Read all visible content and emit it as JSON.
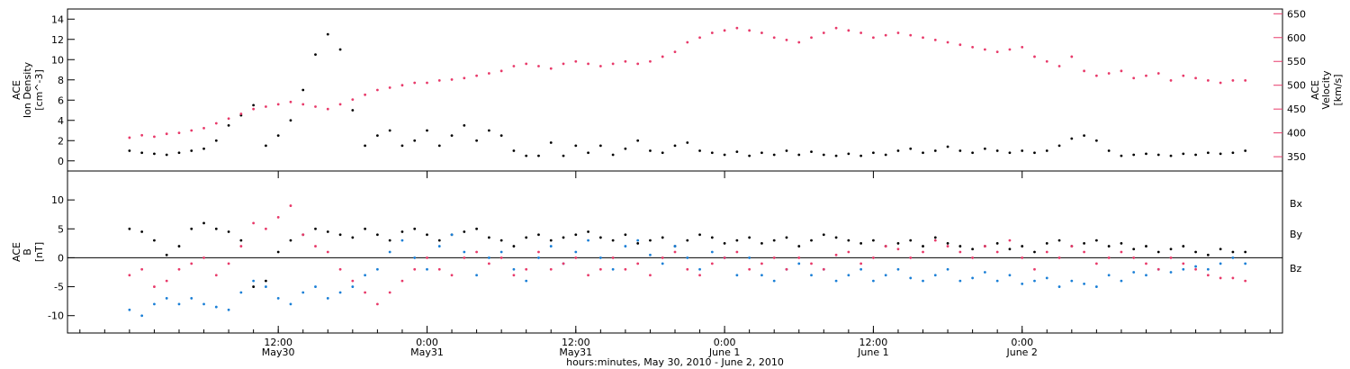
{
  "chart_data": [
    {
      "type": "scatter",
      "panel": "top",
      "ylabel_left": [
        "ACE",
        "Ion Density",
        "[cm^-3]"
      ],
      "ylabel_right": [
        "ACE",
        "Velocity",
        "[km/s]"
      ],
      "ylim_left": [
        -1,
        15
      ],
      "yticks_left": [
        0,
        2,
        4,
        6,
        8,
        10,
        12,
        14
      ],
      "ylim_right": [
        320,
        660
      ],
      "yticks_right": [
        350,
        400,
        450,
        500,
        550,
        600,
        650
      ],
      "series": [
        {
          "axis": "left",
          "color": "#000000",
          "x": [
            0,
            1,
            2,
            3,
            4,
            5,
            6,
            7,
            8,
            9,
            10,
            11,
            12,
            13,
            14,
            15,
            16,
            17,
            18,
            19,
            20,
            21,
            22,
            23,
            24,
            25,
            26,
            27,
            28,
            29,
            30,
            31,
            32,
            33,
            34,
            35,
            36,
            37,
            38,
            39,
            40,
            41,
            42,
            43,
            44,
            45,
            46,
            47,
            48,
            49,
            50,
            51,
            52,
            53,
            54,
            55,
            56,
            57,
            58,
            59,
            60,
            61,
            62,
            63,
            64,
            65,
            66,
            67,
            68,
            69,
            70,
            71,
            72,
            73,
            74,
            75,
            76,
            77,
            78,
            79,
            80,
            81,
            82,
            83,
            84,
            85,
            86,
            87,
            88,
            89,
            90
          ],
          "y": [
            1.0,
            0.8,
            0.7,
            0.6,
            0.8,
            1.0,
            1.2,
            2.0,
            3.5,
            4.5,
            5.5,
            1.5,
            2.5,
            4.0,
            7.0,
            10.5,
            12.5,
            11.0,
            5.0,
            1.5,
            2.5,
            3.0,
            1.5,
            2.0,
            3.0,
            1.5,
            2.5,
            3.5,
            2.0,
            3.0,
            2.5,
            1.0,
            0.5,
            0.5,
            1.8,
            0.5,
            1.5,
            0.8,
            1.5,
            0.6,
            1.2,
            2.0,
            1.0,
            0.8,
            1.5,
            1.8,
            1.0,
            0.8,
            0.6,
            0.9,
            0.5,
            0.8,
            0.6,
            1.0,
            0.6,
            0.9,
            0.6,
            0.5,
            0.7,
            0.5,
            0.8,
            0.6,
            1.0,
            1.2,
            0.8,
            1.0,
            1.4,
            1.0,
            0.8,
            1.2,
            1.0,
            0.8,
            1.0,
            0.8,
            1.0,
            1.5,
            2.2,
            2.5,
            2.0,
            1.0,
            0.5,
            0.6,
            0.7,
            0.6,
            0.5,
            0.7,
            0.6,
            0.8,
            0.7,
            0.8,
            1.0
          ]
        },
        {
          "axis": "right",
          "color": "#e83a6a",
          "x": [
            0,
            1,
            2,
            3,
            4,
            5,
            6,
            7,
            8,
            9,
            10,
            11,
            12,
            13,
            14,
            15,
            16,
            17,
            18,
            19,
            20,
            21,
            22,
            23,
            24,
            25,
            26,
            27,
            28,
            29,
            30,
            31,
            32,
            33,
            34,
            35,
            36,
            37,
            38,
            39,
            40,
            41,
            42,
            43,
            44,
            45,
            46,
            47,
            48,
            49,
            50,
            51,
            52,
            53,
            54,
            55,
            56,
            57,
            58,
            59,
            60,
            61,
            62,
            63,
            64,
            65,
            66,
            67,
            68,
            69,
            70,
            71,
            72,
            73,
            74,
            75,
            76,
            77,
            78,
            79,
            80,
            81,
            82,
            83,
            84,
            85,
            86,
            87,
            88,
            89,
            90
          ],
          "y": [
            390,
            395,
            392,
            398,
            400,
            405,
            410,
            420,
            430,
            440,
            450,
            455,
            460,
            465,
            460,
            455,
            450,
            460,
            470,
            480,
            490,
            495,
            500,
            505,
            505,
            510,
            512,
            515,
            520,
            525,
            530,
            540,
            545,
            540,
            535,
            545,
            550,
            545,
            540,
            545,
            550,
            545,
            550,
            560,
            570,
            590,
            600,
            610,
            615,
            620,
            615,
            610,
            600,
            595,
            590,
            600,
            610,
            620,
            615,
            610,
            600,
            605,
            610,
            605,
            600,
            595,
            590,
            585,
            580,
            575,
            570,
            575,
            580,
            560,
            550,
            540,
            560,
            530,
            520,
            525,
            530,
            515,
            520,
            525,
            510,
            520,
            515,
            510,
            505,
            510,
            510
          ]
        }
      ]
    },
    {
      "type": "scatter",
      "panel": "bottom",
      "ylabel_left": [
        "ACE",
        "B",
        "[nT]"
      ],
      "ylim": [
        -13,
        15
      ],
      "yticks": [
        -10,
        -5,
        0,
        5,
        10
      ],
      "zero_line": true,
      "legend_placement": "right",
      "series": [
        {
          "name": "B_x",
          "color": "#000000",
          "x": [
            0,
            1,
            2,
            3,
            4,
            5,
            6,
            7,
            8,
            9,
            10,
            11,
            12,
            13,
            14,
            15,
            16,
            17,
            18,
            19,
            20,
            21,
            22,
            23,
            24,
            25,
            26,
            27,
            28,
            29,
            30,
            31,
            32,
            33,
            34,
            35,
            36,
            37,
            38,
            39,
            40,
            41,
            42,
            43,
            44,
            45,
            46,
            47,
            48,
            49,
            50,
            51,
            52,
            53,
            54,
            55,
            56,
            57,
            58,
            59,
            60,
            61,
            62,
            63,
            64,
            65,
            66,
            67,
            68,
            69,
            70,
            71,
            72,
            73,
            74,
            75,
            76,
            77,
            78,
            79,
            80,
            81,
            82,
            83,
            84,
            85,
            86,
            87,
            88,
            89,
            90
          ],
          "y": [
            5.0,
            4.5,
            3.0,
            0.5,
            2.0,
            5.0,
            6.0,
            5.0,
            4.5,
            3.0,
            -5.0,
            -4.0,
            1.0,
            3.0,
            4.0,
            5.0,
            4.5,
            4.0,
            3.5,
            5.0,
            4.0,
            3.0,
            4.5,
            5.0,
            4.0,
            3.0,
            4.0,
            4.5,
            5.0,
            3.5,
            3.0,
            2.0,
            3.5,
            4.0,
            3.0,
            3.5,
            4.0,
            4.5,
            3.5,
            3.0,
            4.0,
            2.5,
            3.0,
            3.5,
            2.0,
            3.0,
            4.0,
            3.5,
            2.5,
            3.0,
            3.5,
            2.5,
            3.0,
            3.5,
            2.0,
            3.0,
            4.0,
            3.5,
            3.0,
            2.5,
            3.0,
            2.0,
            2.5,
            3.0,
            2.0,
            3.5,
            2.5,
            2.0,
            1.5,
            2.0,
            2.5,
            1.5,
            2.0,
            1.0,
            2.5,
            3.0,
            2.0,
            2.5,
            3.0,
            2.0,
            2.5,
            1.5,
            2.0,
            1.0,
            1.5,
            2.0,
            1.0,
            0.5,
            1.5,
            1.0,
            1.0
          ]
        },
        {
          "name": "B_y",
          "color": "#1a7fd6",
          "x": [
            0,
            1,
            2,
            3,
            4,
            5,
            6,
            7,
            8,
            9,
            10,
            11,
            12,
            13,
            14,
            15,
            16,
            17,
            18,
            19,
            20,
            21,
            22,
            23,
            24,
            25,
            26,
            27,
            28,
            29,
            30,
            31,
            32,
            33,
            34,
            35,
            36,
            37,
            38,
            39,
            40,
            41,
            42,
            43,
            44,
            45,
            46,
            47,
            48,
            49,
            50,
            51,
            52,
            53,
            54,
            55,
            56,
            57,
            58,
            59,
            60,
            61,
            62,
            63,
            64,
            65,
            66,
            67,
            68,
            69,
            70,
            71,
            72,
            73,
            74,
            75,
            76,
            77,
            78,
            79,
            80,
            81,
            82,
            83,
            84,
            85,
            86,
            87,
            88,
            89,
            90
          ],
          "y": [
            -9.0,
            -10.0,
            -8.0,
            -7.0,
            -8.0,
            -7.0,
            -8.0,
            -8.5,
            -9.0,
            -6.0,
            -4.0,
            -5.0,
            -7.0,
            -8.0,
            -6.0,
            -5.0,
            -7.0,
            -6.0,
            -5.0,
            -3.0,
            -2.0,
            1.0,
            3.0,
            0.0,
            -2.0,
            2.0,
            4.0,
            1.0,
            -3.0,
            0.0,
            1.0,
            -2.0,
            -4.0,
            0.0,
            2.0,
            -1.0,
            1.0,
            3.0,
            0.0,
            -2.0,
            2.0,
            3.0,
            0.5,
            -1.0,
            2.0,
            0.0,
            -2.0,
            1.0,
            0.0,
            -3.0,
            0.0,
            -3.0,
            -4.0,
            -2.0,
            -1.0,
            -3.0,
            -2.0,
            -4.0,
            -3.0,
            -2.0,
            -4.0,
            -3.0,
            -2.0,
            -3.5,
            -4.0,
            -3.0,
            -2.0,
            -4.0,
            -3.5,
            -2.5,
            -4.0,
            -3.0,
            -4.5,
            -4.0,
            -3.5,
            -5.0,
            -4.0,
            -4.5,
            -5.0,
            -3.0,
            -4.0,
            -2.5,
            -3.0,
            -2.0,
            -2.5,
            -2.0,
            -1.5,
            -2.0,
            -1.0,
            0.0,
            -1.0
          ]
        },
        {
          "name": "B_z",
          "color": "#e83a6a",
          "x": [
            0,
            1,
            2,
            3,
            4,
            5,
            6,
            7,
            8,
            9,
            10,
            11,
            12,
            13,
            14,
            15,
            16,
            17,
            18,
            19,
            20,
            21,
            22,
            23,
            24,
            25,
            26,
            27,
            28,
            29,
            30,
            31,
            32,
            33,
            34,
            35,
            36,
            37,
            38,
            39,
            40,
            41,
            42,
            43,
            44,
            45,
            46,
            47,
            48,
            49,
            50,
            51,
            52,
            53,
            54,
            55,
            56,
            57,
            58,
            59,
            60,
            61,
            62,
            63,
            64,
            65,
            66,
            67,
            68,
            69,
            70,
            71,
            72,
            73,
            74,
            75,
            76,
            77,
            78,
            79,
            80,
            81,
            82,
            83,
            84,
            85,
            86,
            87,
            88,
            89,
            90
          ],
          "y": [
            -3.0,
            -2.0,
            -5.0,
            -4.0,
            -2.0,
            -1.0,
            0.0,
            -3.0,
            -1.0,
            2.0,
            6.0,
            5.0,
            7.0,
            9.0,
            4.0,
            2.0,
            1.0,
            -2.0,
            -4.0,
            -6.0,
            -8.0,
            -6.0,
            -4.0,
            -2.0,
            0.0,
            -2.0,
            -3.0,
            0.0,
            1.0,
            -1.0,
            0.0,
            -3.0,
            -2.0,
            1.0,
            -2.0,
            -1.0,
            0.0,
            -3.0,
            -2.0,
            0.0,
            -2.0,
            -1.0,
            -3.0,
            0.0,
            1.0,
            -2.0,
            -3.0,
            -1.0,
            0.0,
            1.0,
            -2.0,
            -1.0,
            0.0,
            -2.0,
            0.0,
            -1.0,
            -2.0,
            0.5,
            1.0,
            -1.0,
            0.0,
            2.0,
            1.5,
            0.0,
            1.0,
            3.0,
            2.0,
            1.0,
            0.0,
            2.0,
            1.0,
            3.0,
            0.0,
            -2.0,
            1.0,
            0.0,
            2.0,
            1.0,
            -1.0,
            0.0,
            1.0,
            0.0,
            -1.0,
            -2.0,
            0.0,
            -1.0,
            -2.0,
            -3.0,
            -3.5,
            -3.5,
            -4.0
          ]
        }
      ]
    }
  ],
  "time_axis": {
    "xlim_hours": [
      -5,
      93
    ],
    "ticks_hours": [
      12,
      24,
      36,
      48,
      60,
      72
    ],
    "ticks": [
      {
        "time": "12:00",
        "date": "May30"
      },
      {
        "time": "0:00",
        "date": "May31"
      },
      {
        "time": "12:00",
        "date": "May31"
      },
      {
        "time": "0:00",
        "date": "June 1"
      },
      {
        "time": "12:00",
        "date": "June 1"
      },
      {
        "time": "0:00",
        "date": "June 2"
      }
    ],
    "xlabel": "hours:minutes, May 30, 2010 - June 2, 2010"
  },
  "legend_labels": [
    "Bx",
    "By",
    "Bz"
  ],
  "colors": {
    "black": "#000000",
    "pink": "#e83a6a",
    "blue": "#1a7fd6"
  }
}
